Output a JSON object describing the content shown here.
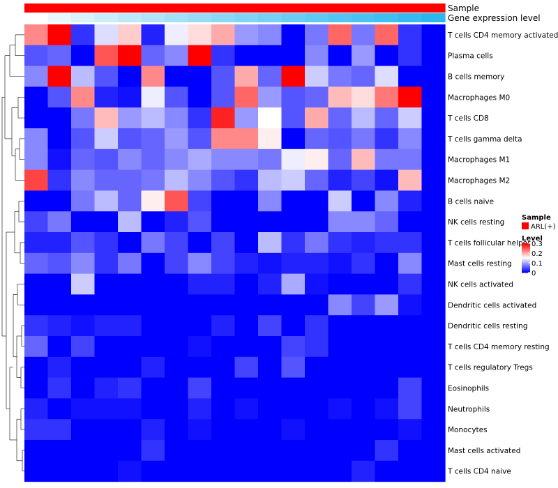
{
  "chart_data": {
    "type": "heatmap",
    "annotation_tracks": [
      {
        "name": "Sample",
        "type": "categorical",
        "color": "#ff0000",
        "label": "ARL(+)"
      },
      {
        "name": "Gene expression level",
        "type": "gradient",
        "color_low": "#ffffff",
        "color_high": "#2ab7ef"
      }
    ],
    "rows": [
      "T cells CD4 memory activated",
      "Plasma cells",
      "B cells memory",
      "Macrophages M0",
      "T cells CD8",
      "T cells gamma delta",
      "Macrophages M1",
      "Macrophages M2",
      "B cells naive",
      "NK cells resting",
      "T cells follicular helper",
      "Mast cells resting",
      "NK cells activated",
      "Dendritic cells activated",
      "Dendritic cells resting",
      "T cells CD4 memory resting",
      "T cells regulatory  Tregs",
      "Eosinophils",
      "Neutrophils",
      "Monocytes",
      "Mast cells activated",
      "T cells CD4 naive"
    ],
    "n_columns": 18,
    "values": [
      [
        0.22,
        0.3,
        0.03,
        0.13,
        0.18,
        0.02,
        0.14,
        0.17,
        0.2,
        0.09,
        0.08,
        0.0,
        0.07,
        0.24,
        0.07,
        0.24,
        0.03,
        null
      ],
      [
        0.05,
        0.06,
        0.0,
        0.25,
        0.3,
        0.06,
        0.08,
        0.3,
        0.03,
        0.0,
        0.0,
        0.0,
        0.08,
        0.0,
        0.09,
        0.0,
        0.03,
        null
      ],
      [
        0.08,
        0.3,
        0.11,
        0.05,
        0.0,
        0.22,
        0.0,
        0.0,
        0.05,
        0.2,
        0.06,
        0.3,
        0.12,
        0.07,
        0.06,
        0.13,
        0.0,
        null
      ],
      [
        0.0,
        0.05,
        0.22,
        0.02,
        0.01,
        0.14,
        0.05,
        0.0,
        0.05,
        0.24,
        0.09,
        0.05,
        0.06,
        0.19,
        0.17,
        0.23,
        0.3,
        null
      ],
      [
        0.0,
        0.0,
        0.07,
        0.19,
        0.09,
        0.11,
        0.08,
        0.03,
        0.28,
        0.09,
        0.15,
        0.05,
        0.2,
        0.06,
        0.11,
        0.06,
        0.12,
        null
      ],
      [
        0.08,
        0.0,
        0.05,
        0.12,
        0.05,
        0.06,
        0.09,
        0.05,
        0.22,
        0.22,
        0.16,
        0.0,
        0.06,
        0.05,
        0.07,
        0.03,
        0.08,
        null
      ],
      [
        0.08,
        0.01,
        0.06,
        0.05,
        0.08,
        0.06,
        0.08,
        0.1,
        0.08,
        0.08,
        0.07,
        0.14,
        0.16,
        0.06,
        0.19,
        0.07,
        0.07,
        null
      ],
      [
        0.26,
        0.03,
        0.08,
        0.06,
        0.06,
        0.07,
        0.11,
        0.08,
        0.05,
        0.03,
        0.11,
        0.12,
        0.06,
        0.02,
        0.04,
        0.01,
        0.19,
        null
      ],
      [
        0.0,
        0.0,
        0.07,
        0.11,
        0.06,
        0.16,
        0.25,
        0.04,
        0.0,
        0.0,
        0.08,
        0.0,
        0.0,
        0.12,
        0.0,
        0.08,
        0.02,
        null
      ],
      [
        0.04,
        0.07,
        0.0,
        0.0,
        0.11,
        0.0,
        0.02,
        0.05,
        0.0,
        0.0,
        0.0,
        0.0,
        0.0,
        0.08,
        0.08,
        0.06,
        0.0,
        null
      ],
      [
        0.02,
        0.02,
        0.05,
        0.03,
        0.0,
        0.07,
        0.04,
        0.0,
        0.04,
        0.0,
        0.11,
        0.03,
        0.07,
        0.03,
        0.02,
        0.03,
        0.03,
        null
      ],
      [
        0.06,
        0.05,
        0.08,
        0.03,
        0.07,
        0.0,
        0.04,
        0.08,
        0.04,
        0.02,
        0.01,
        0.02,
        0.02,
        0.01,
        0.03,
        0.0,
        0.08,
        null
      ],
      [
        0.0,
        0.0,
        0.12,
        0.0,
        0.0,
        0.0,
        0.0,
        0.02,
        0.02,
        0.0,
        0.02,
        0.1,
        0.01,
        0.0,
        0.0,
        0.0,
        0.03,
        null
      ],
      [
        0.0,
        0.0,
        0.0,
        0.0,
        0.0,
        0.0,
        0.0,
        0.0,
        0.0,
        0.0,
        0.0,
        0.0,
        0.0,
        0.08,
        0.04,
        0.09,
        0.01,
        null
      ],
      [
        0.03,
        0.02,
        0.01,
        0.02,
        0.02,
        0.0,
        0.0,
        0.0,
        0.02,
        0.0,
        0.04,
        0.0,
        0.03,
        0.0,
        0.0,
        0.0,
        0.0,
        null
      ],
      [
        0.06,
        0.0,
        0.04,
        0.0,
        0.0,
        0.0,
        0.0,
        0.01,
        0.0,
        0.0,
        0.0,
        0.04,
        0.03,
        0.0,
        0.0,
        0.0,
        0.0,
        null
      ],
      [
        0.0,
        0.02,
        0.0,
        0.0,
        0.0,
        0.02,
        0.0,
        0.0,
        0.0,
        0.04,
        0.0,
        0.05,
        0.0,
        0.0,
        0.0,
        0.0,
        0.0,
        null
      ],
      [
        0.0,
        0.03,
        0.0,
        0.02,
        0.03,
        0.0,
        0.0,
        0.04,
        0.0,
        0.0,
        0.0,
        0.0,
        0.0,
        0.0,
        0.0,
        0.0,
        0.04,
        null
      ],
      [
        0.02,
        0.0,
        0.01,
        0.01,
        0.01,
        0.0,
        0.0,
        0.02,
        0.0,
        0.01,
        0.0,
        0.0,
        0.0,
        0.01,
        0.0,
        0.01,
        0.04,
        null
      ],
      [
        0.03,
        0.03,
        0.0,
        0.0,
        0.0,
        0.02,
        0.0,
        0.01,
        0.0,
        0.0,
        0.0,
        0.01,
        0.0,
        0.0,
        0.0,
        0.0,
        0.01,
        null
      ],
      [
        0.0,
        0.0,
        0.0,
        0.0,
        0.0,
        0.03,
        0.0,
        0.0,
        0.0,
        0.0,
        0.0,
        0.0,
        0.0,
        0.0,
        0.0,
        0.03,
        0.0,
        null
      ],
      [
        0.0,
        0.0,
        0.0,
        0.0,
        0.01,
        0.0,
        0.0,
        0.0,
        0.0,
        0.0,
        0.0,
        0.0,
        0.0,
        0.0,
        0.02,
        0.0,
        0.0,
        null
      ]
    ],
    "color_scale": {
      "low": "#0000ff",
      "mid": "#ffffff",
      "high": "#ff0000",
      "mid_value": 0.15,
      "range": [
        0,
        0.3
      ]
    },
    "legend": {
      "sample_title": "Sample",
      "sample_label": "ARL(+)",
      "level_title": "Level",
      "level_ticks": [
        "0.3",
        "0.2",
        "0.1",
        "0"
      ],
      "level_tick_values": [
        0.3,
        0.2,
        0.1,
        0.0
      ]
    },
    "dendrogram": {
      "side": "left",
      "clusters_rows": true
    }
  }
}
